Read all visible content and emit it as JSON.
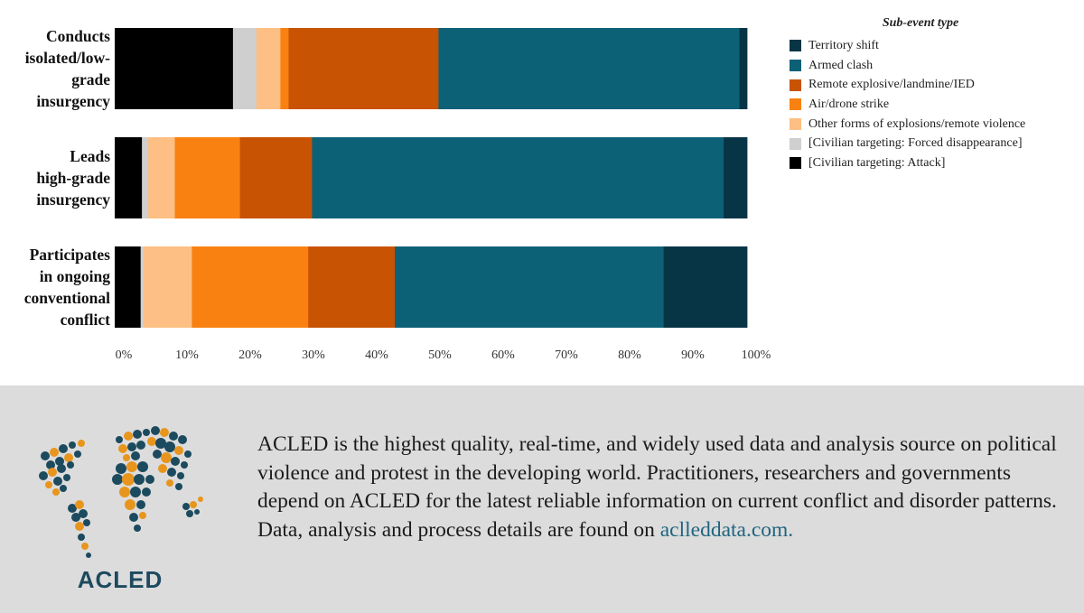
{
  "chart_data": {
    "type": "bar",
    "orientation": "horizontal",
    "stacked": true,
    "normalized": true,
    "xlim": [
      0,
      100
    ],
    "x_ticks": [
      "0%",
      "10%",
      "20%",
      "30%",
      "40%",
      "50%",
      "60%",
      "70%",
      "80%",
      "90%",
      "100%"
    ],
    "categories": [
      [
        "Conducts",
        "isolated/low-",
        "grade",
        "insurgency"
      ],
      [
        "Leads",
        "high-grade",
        "insurgency"
      ],
      [
        "Participates",
        "in ongoing",
        "conventional",
        "conflict"
      ]
    ],
    "legend_title": "Sub-event type",
    "series": [
      {
        "name": "[Civilian targeting: Attack]",
        "color": "#000000",
        "values": [
          18.7,
          4.3,
          4.1
        ]
      },
      {
        "name": "[Civilian targeting: Forced disappearance]",
        "color": "#cfcfcf",
        "values": [
          3.7,
          1.0,
          0.5
        ]
      },
      {
        "name": "Other forms of explosions/remote violence",
        "color": "#fdbf83",
        "values": [
          3.8,
          4.2,
          7.6
        ]
      },
      {
        "name": "Air/drone strike",
        "color": "#f98111",
        "values": [
          1.3,
          10.3,
          18.4
        ]
      },
      {
        "name": "Remote explosive/landmine/IED",
        "color": "#c85302",
        "values": [
          23.7,
          11.4,
          13.7
        ]
      },
      {
        "name": "Armed clash",
        "color": "#0d6177",
        "values": [
          47.6,
          65.1,
          42.5
        ]
      },
      {
        "name": "Territory shift",
        "color": "#083546",
        "values": [
          1.2,
          3.7,
          13.2
        ]
      }
    ],
    "legend_order": [
      6,
      5,
      4,
      3,
      2,
      1,
      0
    ]
  },
  "footer": {
    "logo_text": "ACLED",
    "blurb": "ACLED is the highest quality, real-time, and widely used data and analysis source on political violence and protest in the developing world. Practitioners, researchers and governments depend on ACLED for the latest reliable information on current conflict and disorder patterns. Data, analysis and process details are found on ",
    "link_text": "aclleddata.com."
  },
  "colors": {
    "logo_dark": "#1c4a5e",
    "logo_orange": "#e8951e",
    "footer_bg": "#dcdcdc"
  }
}
